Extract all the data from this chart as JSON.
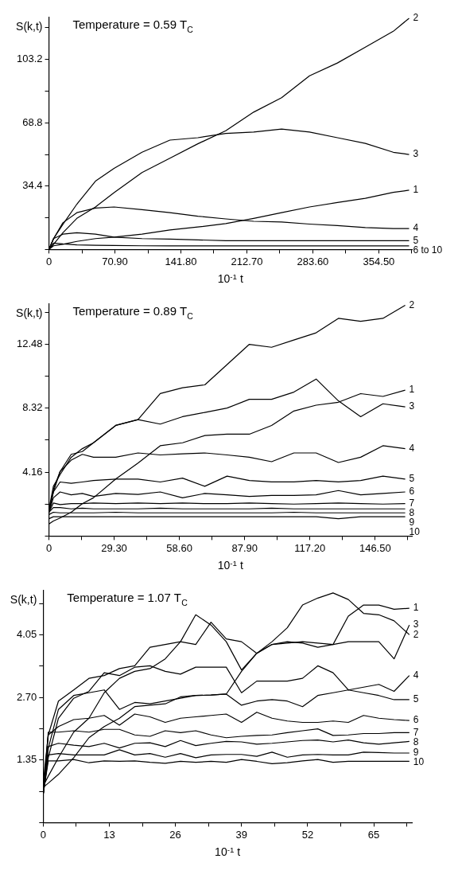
{
  "chart_data": [
    {
      "type": "line",
      "title": "Temperature = 0.59 T$_{C}$",
      "xlabel": "10$^{-1}$ t",
      "ylabel": "S(k,t)",
      "legend": false,
      "marker": "none",
      "line_style": "solid",
      "xlim": [
        0,
        390
      ],
      "ylim": [
        0,
        126
      ],
      "xticks": [
        0,
        {
          "value": 35.45,
          "label": null
        },
        {
          "value": 70.9,
          "label": "70.90"
        },
        {
          "value": 106.35,
          "label": null
        },
        {
          "value": 141.8,
          "label": "141.80"
        },
        {
          "value": 177.25,
          "label": null
        },
        {
          "value": 212.7,
          "label": "212.70"
        },
        {
          "value": 248.15,
          "label": null
        },
        {
          "value": 283.6,
          "label": "283.60"
        },
        {
          "value": 319.05,
          "label": null
        },
        {
          "value": 354.5,
          "label": "354.50"
        },
        {
          "value": 389.95,
          "label": null
        }
      ],
      "yticks": [
        {
          "value": 0,
          "label": null
        },
        {
          "value": 17.2,
          "label": null
        },
        34.4,
        {
          "value": 51.6,
          "label": null
        },
        68.8,
        {
          "value": 86,
          "label": null
        },
        103.2,
        {
          "value": 120.4,
          "label": null
        }
      ],
      "x": [
        0,
        5,
        15,
        30,
        50,
        70,
        100,
        130,
        160,
        190,
        220,
        250,
        280,
        310,
        340,
        370,
        387
      ],
      "series": [
        {
          "name": "1",
          "color": "#000000",
          "values": [
            0,
            2.0,
            2.8,
            4.4,
            5.9,
            6.7,
            8.3,
            10.6,
            12.2,
            14.1,
            16.9,
            20.0,
            23.1,
            25.5,
            27.8,
            31.0,
            32.2
          ]
        },
        {
          "name": "2",
          "color": "#000000",
          "values": [
            0,
            2.8,
            9.1,
            16.9,
            23.1,
            30.9,
            41.8,
            49.6,
            57.4,
            64.5,
            74.6,
            82.4,
            94.3,
            101.3,
            109.9,
            118.5,
            125.6
          ]
        },
        {
          "name": "3",
          "color": "#000000",
          "values": [
            0,
            5.9,
            13.6,
            24.6,
            37.1,
            44.1,
            52.8,
            59.4,
            60.7,
            63.0,
            63.8,
            65.4,
            63.8,
            60.7,
            57.6,
            52.8,
            51.6
          ]
        },
        {
          "name": "4",
          "color": "#000000",
          "values": [
            0,
            5.9,
            14.5,
            20.0,
            22.5,
            23.1,
            21.6,
            20.0,
            18.1,
            16.6,
            15.3,
            14.9,
            13.8,
            13.0,
            11.9,
            11.4,
            11.4
          ]
        },
        {
          "name": "5",
          "color": "#000000",
          "values": [
            0,
            5.9,
            8.3,
            9.1,
            8.3,
            6.7,
            5.9,
            5.6,
            5.2,
            4.8,
            4.8,
            4.8,
            4.8,
            4.8,
            4.8,
            4.8,
            4.8
          ]
        },
        {
          "name": "6 to 10",
          "color": "#000000",
          "values": [
            0,
            3.5,
            3.0,
            2.5,
            2.3,
            2.2,
            2.0,
            2.0,
            2.0,
            2.0,
            2.0,
            2.0,
            2.0,
            2.0,
            2.0,
            2.0,
            2.0
          ]
        }
      ]
    },
    {
      "type": "line",
      "title": "Temperature = 0.89 T$_{C}$",
      "xlabel": "10$^{-1}$ t",
      "ylabel": "S(k,t)",
      "legend": false,
      "marker": "none",
      "line_style": "solid",
      "xlim": [
        0,
        163
      ],
      "ylim": [
        0,
        15.1
      ],
      "xticks": [
        0,
        {
          "value": 14.65,
          "label": null
        },
        {
          "value": 29.3,
          "label": "29.30"
        },
        {
          "value": 43.95,
          "label": null
        },
        {
          "value": 58.6,
          "label": "58.60"
        },
        {
          "value": 73.25,
          "label": null
        },
        {
          "value": 87.9,
          "label": "87.90"
        },
        {
          "value": 102.55,
          "label": null
        },
        {
          "value": 117.2,
          "label": "117.20"
        },
        {
          "value": 131.85,
          "label": null
        },
        {
          "value": 146.5,
          "label": "146.50"
        },
        {
          "value": 161.15,
          "label": null
        }
      ],
      "yticks": [
        {
          "value": 0,
          "label": null
        },
        {
          "value": 2.08,
          "label": null
        },
        4.16,
        {
          "value": 6.24,
          "label": null
        },
        8.32,
        {
          "value": 10.4,
          "label": null
        },
        12.48,
        {
          "value": 14.56,
          "label": null
        }
      ],
      "x": [
        0,
        2,
        5,
        10,
        15,
        20,
        30,
        40,
        50,
        60,
        70,
        80,
        90,
        100,
        110,
        120,
        130,
        140,
        150,
        160
      ],
      "series": [
        {
          "name": "1",
          "color": "#000000",
          "values": [
            0.79,
            0.98,
            1.17,
            1.55,
            2.11,
            2.49,
            3.71,
            4.75,
            5.88,
            6.07,
            6.54,
            6.63,
            6.63,
            7.2,
            8.14,
            8.52,
            8.71,
            9.27,
            9.09,
            9.5
          ]
        },
        {
          "name": "2",
          "color": "#000000",
          "values": [
            1.73,
            3.24,
            4.0,
            5.13,
            5.69,
            6.07,
            7.2,
            7.58,
            9.28,
            9.65,
            9.84,
            11.16,
            12.48,
            12.29,
            12.76,
            13.23,
            14.17,
            13.98,
            14.17,
            15.02
          ]
        },
        {
          "name": "3",
          "color": "#000000",
          "values": [
            1.55,
            3.05,
            4.19,
            5.32,
            5.5,
            6.07,
            7.2,
            7.58,
            7.29,
            7.77,
            8.05,
            8.33,
            8.9,
            8.9,
            9.37,
            10.22,
            8.8,
            7.77,
            8.61,
            8.41
          ]
        },
        {
          "name": "4",
          "color": "#000000",
          "values": [
            1.55,
            2.87,
            4.19,
            4.94,
            5.32,
            5.13,
            5.13,
            5.41,
            5.28,
            5.35,
            5.41,
            5.28,
            5.13,
            4.84,
            5.41,
            5.41,
            4.79,
            5.13,
            5.88,
            5.69
          ]
        },
        {
          "name": "5",
          "color": "#000000",
          "values": [
            1.55,
            2.87,
            3.52,
            3.43,
            3.52,
            3.62,
            3.71,
            3.71,
            3.52,
            3.77,
            3.24,
            3.9,
            3.62,
            3.52,
            3.52,
            3.62,
            3.52,
            3.62,
            3.9,
            3.71
          ]
        },
        {
          "name": "6",
          "color": "#000000",
          "values": [
            1.55,
            2.49,
            2.87,
            2.68,
            2.77,
            2.58,
            2.77,
            2.71,
            2.87,
            2.49,
            2.77,
            2.68,
            2.58,
            2.64,
            2.64,
            2.68,
            2.96,
            2.68,
            2.77,
            2.87
          ]
        },
        {
          "name": "7",
          "color": "#000000",
          "values": [
            1.55,
            2.15,
            2.05,
            2.11,
            2.11,
            2.15,
            2.11,
            2.15,
            2.11,
            2.15,
            2.11,
            2.11,
            2.15,
            2.11,
            2.08,
            2.11,
            2.15,
            2.11,
            2.08,
            2.11
          ]
        },
        {
          "name": "8",
          "color": "#000000",
          "values": [
            1.55,
            1.85,
            1.85,
            1.77,
            1.81,
            1.77,
            1.77,
            1.77,
            1.81,
            1.77,
            1.77,
            1.77,
            1.77,
            1.81,
            1.77,
            1.77,
            1.77,
            1.77,
            1.77,
            1.77
          ]
        },
        {
          "name": "9",
          "color": "#000000",
          "values": [
            1.4,
            1.55,
            1.51,
            1.51,
            1.51,
            1.51,
            1.55,
            1.51,
            1.51,
            1.51,
            1.51,
            1.51,
            1.51,
            1.51,
            1.55,
            1.51,
            1.51,
            1.51,
            1.51,
            1.51
          ]
        },
        {
          "name": "10",
          "color": "#000000",
          "values": [
            1.13,
            1.26,
            1.26,
            1.26,
            1.26,
            1.26,
            1.26,
            1.26,
            1.26,
            1.26,
            1.26,
            1.26,
            1.26,
            1.26,
            1.26,
            1.26,
            1.13,
            1.26,
            1.26,
            1.26
          ]
        }
      ]
    },
    {
      "type": "line",
      "title": "Temperature = 1.07 T$_{C}$",
      "xlabel": "10$^{-1}$ t",
      "ylabel": "S(k,t)",
      "legend": false,
      "marker": "none",
      "line_style": "solid",
      "xlim": [
        0,
        72.5
      ],
      "ylim": [
        0,
        5.0
      ],
      "xticks": [
        0,
        {
          "value": 6.5,
          "label": null
        },
        13,
        {
          "value": 19.5,
          "label": null
        },
        26,
        {
          "value": 32.5,
          "label": null
        },
        39,
        {
          "value": 45.5,
          "label": null
        },
        52,
        {
          "value": 58.5,
          "label": null
        },
        65,
        {
          "value": 71.5,
          "label": null
        }
      ],
      "yticks": [
        {
          "value": 0,
          "label": null
        },
        {
          "value": 0.675,
          "label": null
        },
        1.35,
        {
          "value": 2.025,
          "label": null
        },
        {
          "value": 2.7,
          "label": "2.70"
        },
        {
          "value": 3.375,
          "label": null
        },
        4.05,
        {
          "value": 4.725,
          "label": null
        }
      ],
      "x": [
        0,
        1,
        3,
        6,
        9,
        12,
        15,
        18,
        21,
        24,
        27,
        30,
        33,
        36,
        39,
        42,
        45,
        48,
        51,
        54,
        57,
        60,
        63,
        66,
        69,
        72
      ],
      "series": [
        {
          "name": "1",
          "color": "#000000",
          "values": [
            0.79,
            1.0,
            1.4,
            1.95,
            2.25,
            2.8,
            3.11,
            3.26,
            3.32,
            3.53,
            3.9,
            4.48,
            4.26,
            3.9,
            3.29,
            3.65,
            3.84,
            3.9,
            3.87,
            3.78,
            3.84,
            4.45,
            4.69,
            4.69,
            4.6,
            4.62
          ]
        },
        {
          "name": "2",
          "color": "#000000",
          "values": [
            0.76,
            0.85,
            1.04,
            1.4,
            1.83,
            2.07,
            2.25,
            2.5,
            2.53,
            2.56,
            2.71,
            2.74,
            2.75,
            2.77,
            3.26,
            3.65,
            3.9,
            4.2,
            4.69,
            4.84,
            4.95,
            4.81,
            4.51,
            4.48,
            4.35,
            4.05
          ]
        },
        {
          "name": "3",
          "color": "#000000",
          "values": [
            0.85,
            1.89,
            2.62,
            2.86,
            3.11,
            3.17,
            3.32,
            3.38,
            3.78,
            3.84,
            3.9,
            3.84,
            4.32,
            3.96,
            3.9,
            3.65,
            3.84,
            3.87,
            3.9,
            3.87,
            3.84,
            3.9,
            3.9,
            3.9,
            3.53,
            4.26
          ]
        },
        {
          "name": "4",
          "color": "#000000",
          "values": [
            0.61,
            1.4,
            2.25,
            2.68,
            2.83,
            3.23,
            3.17,
            3.35,
            3.38,
            3.26,
            3.2,
            3.35,
            3.35,
            3.35,
            2.8,
            3.05,
            3.05,
            3.05,
            3.11,
            3.38,
            3.23,
            2.86,
            2.92,
            2.98,
            2.83,
            3.17
          ]
        },
        {
          "name": "5",
          "color": "#000000",
          "values": [
            0.61,
            1.6,
            2.44,
            2.74,
            2.8,
            2.86,
            2.44,
            2.59,
            2.56,
            2.62,
            2.68,
            2.74,
            2.75,
            2.77,
            2.53,
            2.62,
            2.65,
            2.62,
            2.5,
            2.74,
            2.8,
            2.86,
            2.8,
            2.74,
            2.65,
            2.65
          ]
        },
        {
          "name": "6",
          "color": "#000000",
          "values": [
            0.61,
            1.89,
            2.07,
            2.22,
            2.25,
            2.31,
            2.1,
            2.34,
            2.28,
            2.16,
            2.25,
            2.28,
            2.31,
            2.34,
            2.16,
            2.38,
            2.25,
            2.19,
            2.16,
            2.16,
            2.19,
            2.16,
            2.31,
            2.25,
            2.22,
            2.2
          ]
        },
        {
          "name": "7",
          "color": "#000000",
          "values": [
            0.61,
            1.95,
            1.95,
            1.98,
            1.95,
            2.01,
            2.01,
            1.89,
            1.86,
            1.98,
            1.94,
            1.98,
            1.89,
            1.83,
            1.86,
            1.88,
            1.89,
            1.94,
            1.98,
            2.02,
            1.88,
            1.89,
            1.92,
            1.92,
            1.94,
            1.94
          ]
        },
        {
          "name": "8",
          "color": "#000000",
          "values": [
            0.61,
            1.64,
            1.71,
            1.67,
            1.64,
            1.71,
            1.61,
            1.71,
            1.72,
            1.64,
            1.77,
            1.66,
            1.71,
            1.75,
            1.74,
            1.69,
            1.71,
            1.74,
            1.77,
            1.78,
            1.74,
            1.78,
            1.72,
            1.69,
            1.72,
            1.75
          ]
        },
        {
          "name": "9",
          "color": "#000000",
          "values": [
            0.61,
            1.46,
            1.49,
            1.46,
            1.46,
            1.46,
            1.57,
            1.46,
            1.49,
            1.41,
            1.49,
            1.4,
            1.46,
            1.47,
            1.47,
            1.43,
            1.52,
            1.41,
            1.46,
            1.47,
            1.46,
            1.46,
            1.52,
            1.51,
            1.5,
            1.5
          ]
        },
        {
          "name": "10",
          "color": "#000000",
          "values": [
            0.61,
            1.33,
            1.33,
            1.36,
            1.29,
            1.33,
            1.32,
            1.33,
            1.3,
            1.28,
            1.32,
            1.3,
            1.32,
            1.3,
            1.36,
            1.32,
            1.27,
            1.29,
            1.33,
            1.36,
            1.3,
            1.32,
            1.32,
            1.32,
            1.32,
            1.32
          ]
        }
      ]
    }
  ]
}
